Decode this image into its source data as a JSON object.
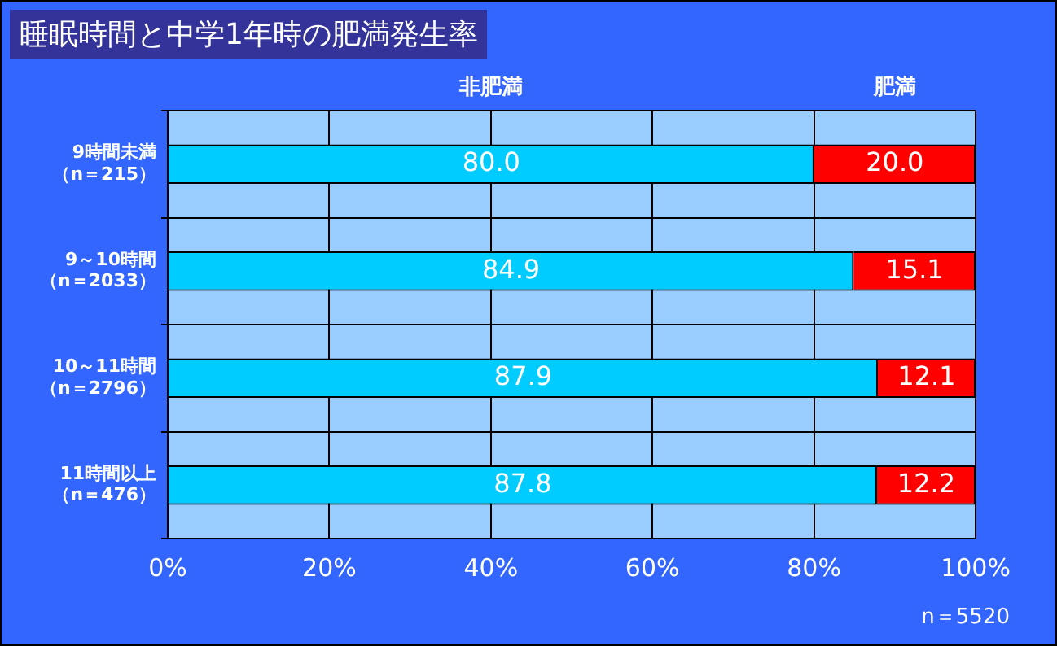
{
  "chart_data": {
    "type": "bar",
    "orientation": "horizontal",
    "stacked": true,
    "title": "睡眠時間と中学1年時の肥満発生率",
    "categories": [
      "9時間未満（n＝215）",
      "9～10時間（n＝2033）",
      "10～11時間（n＝2796）",
      "11時間以上（n＝476）"
    ],
    "series": [
      {
        "name": "非肥満",
        "color": "#00ccff",
        "values": [
          80.0,
          84.9,
          87.9,
          87.8
        ],
        "value_labels": [
          "80.0",
          "84.9",
          "87.9",
          "87.8"
        ]
      },
      {
        "name": "肥満",
        "color": "#ff0000",
        "values": [
          20.0,
          15.1,
          12.1,
          12.2
        ],
        "value_labels": [
          "20.0",
          "15.1",
          "12.1",
          "12.2"
        ]
      }
    ],
    "xlim": [
      0,
      100
    ],
    "xticks": [
      {
        "value": 0,
        "label": "0%"
      },
      {
        "value": 20,
        "label": "20%"
      },
      {
        "value": 40,
        "label": "40%"
      },
      {
        "value": 60,
        "label": "60%"
      },
      {
        "value": 80,
        "label": "80%"
      },
      {
        "value": 100,
        "label": "100%"
      }
    ],
    "grid": "x",
    "annotations": [
      "n＝5520"
    ]
  }
}
